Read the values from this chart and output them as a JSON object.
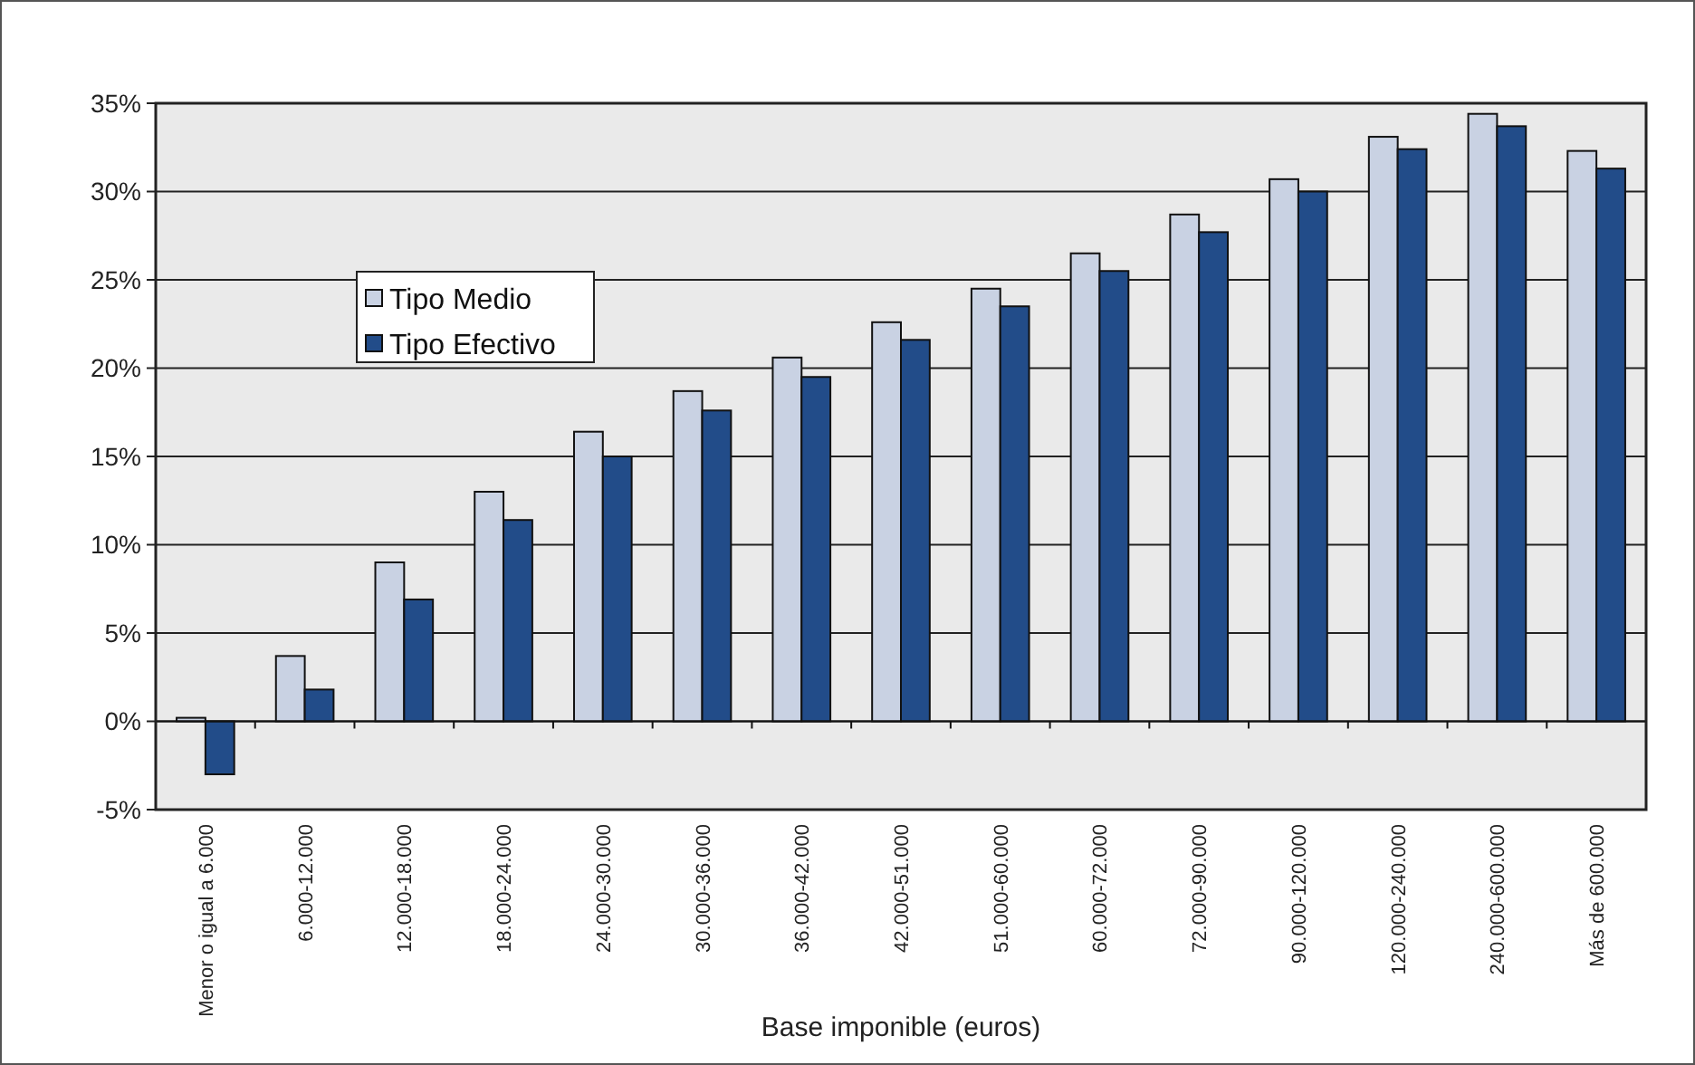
{
  "chart_data": {
    "type": "bar",
    "xlabel": "Base imponible (euros)",
    "categories": [
      "Menor o igual a 6.000",
      "6.000-12.000",
      "12.000-18.000",
      "18.000-24.000",
      "24.000-30.000",
      "30.000-36.000",
      "36.000-42.000",
      "42.000-51.000",
      "51.000-60.000",
      "60.000-72.000",
      "72.000-90.000",
      "90.000-120.000",
      "120.000-240.000",
      "240.000-600.000",
      "Más de 600.000"
    ],
    "series": [
      {
        "name": "Tipo Medio",
        "color": "#c9d2e3",
        "values": [
          0.2,
          3.7,
          9.0,
          13.0,
          16.4,
          18.7,
          20.6,
          22.6,
          24.5,
          26.5,
          28.7,
          30.7,
          33.1,
          34.4,
          32.3
        ]
      },
      {
        "name": "Tipo Efectivo",
        "color": "#224c89",
        "values": [
          -3.0,
          1.8,
          6.9,
          11.4,
          15.0,
          17.6,
          19.5,
          21.6,
          23.5,
          25.5,
          27.7,
          30.0,
          32.4,
          33.7,
          31.3
        ]
      }
    ],
    "ylim": [
      -5,
      35
    ],
    "yticks": [
      {
        "value": -5,
        "label": "-5%"
      },
      {
        "value": 0,
        "label": "0%"
      },
      {
        "value": 5,
        "label": "5%"
      },
      {
        "value": 10,
        "label": "10%"
      },
      {
        "value": 15,
        "label": "15%"
      },
      {
        "value": 20,
        "label": "20%"
      },
      {
        "value": 25,
        "label": "25%"
      },
      {
        "value": 30,
        "label": "30%"
      },
      {
        "value": 35,
        "label": "35%"
      }
    ],
    "grid": "y",
    "legend": "top left"
  }
}
